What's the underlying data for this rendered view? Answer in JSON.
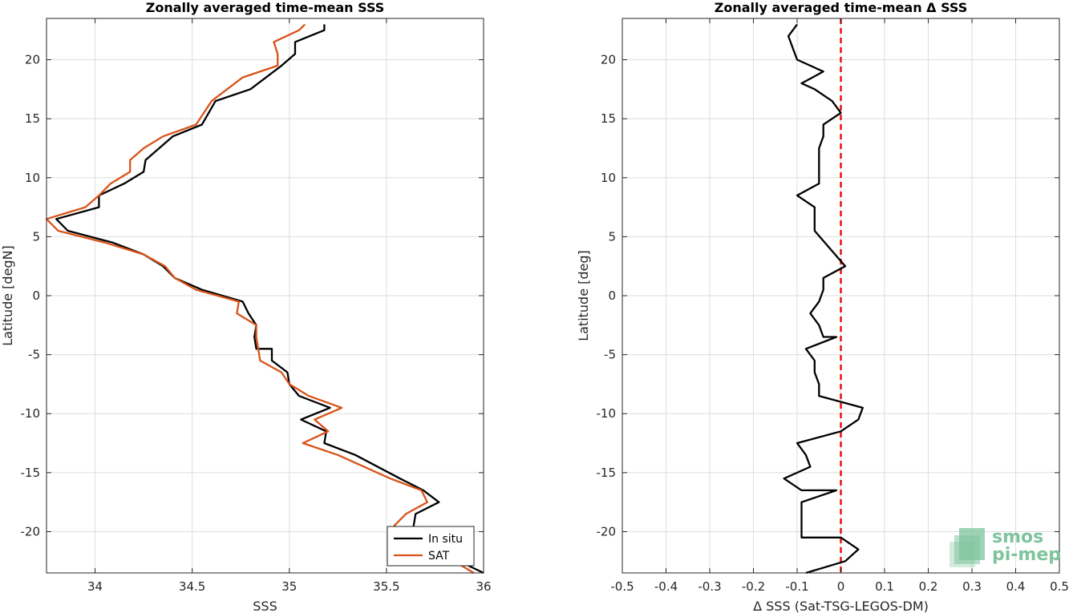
{
  "logo": {
    "line1": "smos",
    "line2": "pi-mep",
    "color": "#7fc49c"
  },
  "chart_data": [
    {
      "type": "line",
      "title": "Zonally averaged time-mean SSS",
      "xlabel": "SSS",
      "ylabel": "Latitude [degN]",
      "xlim": [
        33.75,
        36.0
      ],
      "ylim": [
        -23.5,
        23.5
      ],
      "xticks": [
        "34",
        "34.5",
        "35",
        "35.5",
        "36"
      ],
      "xtick_values": [
        34,
        34.5,
        35,
        35.5,
        36
      ],
      "yticks": [
        "20",
        "15",
        "10",
        "5",
        "0",
        "-5",
        "-10",
        "-15",
        "-20"
      ],
      "ytick_values": [
        20,
        15,
        10,
        5,
        0,
        -5,
        -10,
        -15,
        -20
      ],
      "grid": true,
      "legend_position": "bottom-right",
      "series": [
        {
          "name": "In situ",
          "color": "#000000",
          "x": [
            35.18,
            35.18,
            35.03,
            35.03,
            34.96,
            34.8,
            34.62,
            34.55,
            34.4,
            34.26,
            34.25,
            34.15,
            34.02,
            34.02,
            33.8,
            33.86,
            34.09,
            34.25,
            34.35,
            34.41,
            34.55,
            34.76,
            34.79,
            34.83,
            34.82,
            34.83,
            34.91,
            34.91,
            34.99,
            35.0,
            35.05,
            35.21,
            35.06,
            35.19,
            35.18,
            35.34,
            35.57,
            35.69,
            35.77,
            35.65,
            35.64,
            35.62,
            36.0
          ],
          "y": [
            23.0,
            22.5,
            21.5,
            20.5,
            19.5,
            17.5,
            16.5,
            14.5,
            13.5,
            11.5,
            10.5,
            9.5,
            8.5,
            7.5,
            6.5,
            5.5,
            4.5,
            3.5,
            2.5,
            1.5,
            0.5,
            -0.5,
            -1.5,
            -2.5,
            -3.5,
            -4.5,
            -4.5,
            -5.5,
            -6.5,
            -7.5,
            -8.5,
            -9.5,
            -10.5,
            -11.5,
            -12.5,
            -13.5,
            -15.5,
            -16.5,
            -17.5,
            -18.5,
            -19.5,
            -20.5,
            -23.5
          ]
        },
        {
          "name": "SAT",
          "color": "#d95319",
          "x": [
            35.08,
            35.05,
            34.92,
            34.94,
            34.94,
            34.76,
            34.6,
            34.52,
            34.35,
            34.25,
            34.18,
            34.18,
            34.08,
            34.02,
            33.95,
            33.75,
            33.81,
            34.05,
            34.25,
            34.36,
            34.41,
            34.52,
            34.74,
            34.73,
            34.83,
            34.83,
            34.84,
            34.85,
            34.96,
            35.0,
            35.1,
            35.27,
            35.13,
            35.2,
            35.07,
            35.25,
            35.52,
            35.68,
            35.71,
            35.6,
            35.54,
            35.95
          ],
          "y": [
            23.0,
            22.5,
            21.5,
            20.5,
            19.5,
            18.5,
            16.5,
            14.5,
            13.5,
            12.5,
            11.5,
            10.5,
            9.5,
            8.5,
            7.5,
            6.5,
            5.5,
            4.5,
            3.5,
            2.5,
            1.5,
            0.5,
            -0.5,
            -1.5,
            -2.5,
            -3.5,
            -4.5,
            -5.5,
            -6.5,
            -7.5,
            -8.5,
            -9.5,
            -10.5,
            -11.5,
            -12.5,
            -13.5,
            -15.5,
            -16.5,
            -17.5,
            -18.5,
            -19.5,
            -23.5
          ]
        }
      ]
    },
    {
      "type": "line",
      "title": "Zonally averaged time-mean Δ SSS",
      "xlabel": "Δ SSS (Sat-TSG-LEGOS-DM)",
      "ylabel": "Latitude [deg]",
      "xlim": [
        -0.5,
        0.5
      ],
      "ylim": [
        -23.5,
        23.5
      ],
      "xticks": [
        "-0.5",
        "-0.4",
        "-0.3",
        "-0.2",
        "-0.1",
        "0",
        "0.1",
        "0.2",
        "0.3",
        "0.4",
        "0.5"
      ],
      "xtick_values": [
        -0.5,
        -0.4,
        -0.3,
        -0.2,
        -0.1,
        0,
        0.1,
        0.2,
        0.3,
        0.4,
        0.5
      ],
      "yticks": [
        "20",
        "15",
        "10",
        "5",
        "0",
        "-5",
        "-10",
        "-15",
        "-20"
      ],
      "ytick_values": [
        20,
        15,
        10,
        5,
        0,
        -5,
        -10,
        -15,
        -20
      ],
      "grid": true,
      "reference_line": {
        "x": 0,
        "color": "#e8120c",
        "style": "dashed"
      },
      "series": [
        {
          "color": "#000000",
          "x": [
            -0.1,
            -0.12,
            -0.11,
            -0.1,
            -0.04,
            -0.09,
            -0.06,
            -0.02,
            0.0,
            -0.04,
            -0.04,
            -0.05,
            -0.05,
            -0.05,
            -0.05,
            -0.1,
            -0.06,
            -0.06,
            -0.06,
            0.01,
            -0.04,
            -0.04,
            -0.05,
            -0.07,
            -0.05,
            -0.04,
            -0.01,
            -0.08,
            -0.06,
            -0.06,
            -0.05,
            -0.05,
            0.05,
            0.04,
            0.0,
            -0.1,
            -0.08,
            -0.07,
            -0.13,
            -0.09,
            -0.01,
            -0.09,
            -0.09,
            -0.09,
            0.0,
            0.04,
            0.01,
            -0.08
          ],
          "y": [
            23.0,
            22.0,
            21.0,
            20.0,
            19.0,
            18.0,
            17.5,
            16.5,
            15.5,
            14.5,
            13.5,
            12.5,
            11.5,
            10.5,
            9.5,
            8.5,
            7.5,
            6.5,
            5.5,
            2.5,
            1.5,
            0.5,
            -0.5,
            -1.5,
            -2.5,
            -3.5,
            -3.5,
            -4.5,
            -5.5,
            -6.5,
            -7.5,
            -8.5,
            -9.5,
            -10.5,
            -11.5,
            -12.5,
            -13.5,
            -14.5,
            -15.5,
            -16.5,
            -16.5,
            -17.5,
            -18.5,
            -20.5,
            -20.5,
            -21.5,
            -22.5,
            -23.5
          ]
        }
      ]
    }
  ]
}
